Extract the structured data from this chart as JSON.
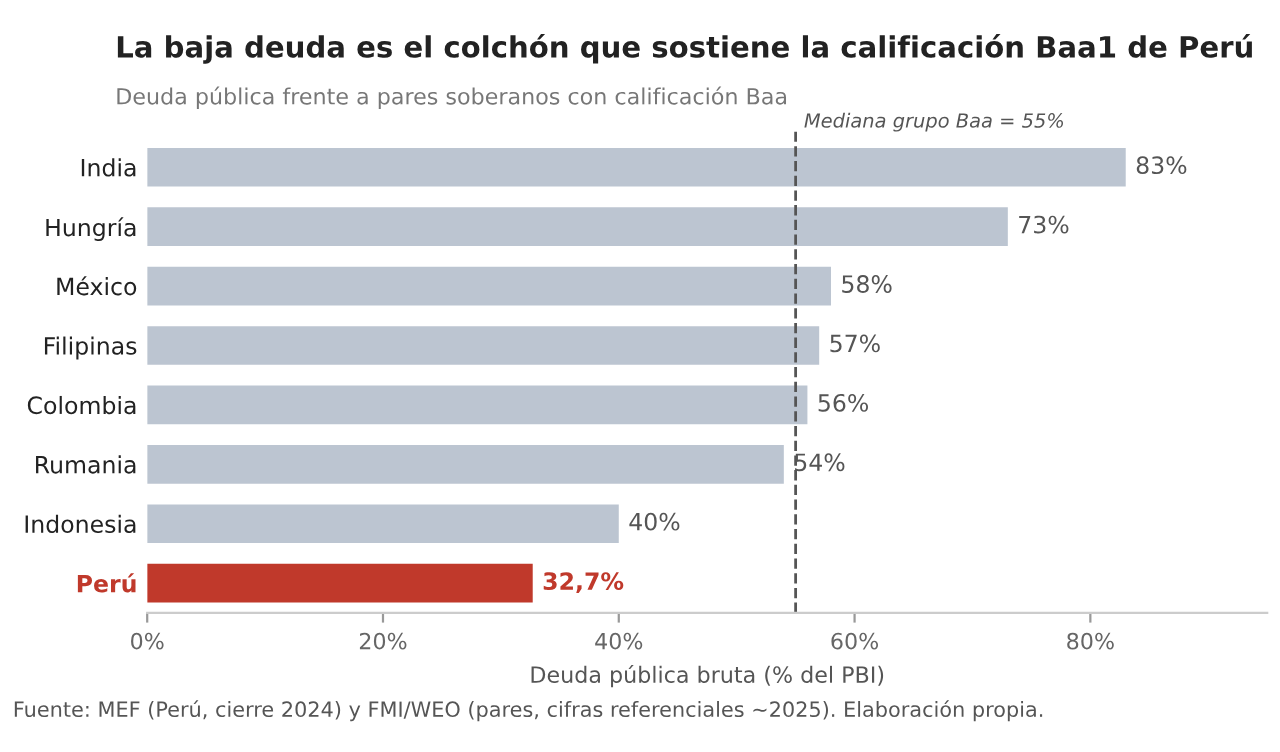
{
  "chart_data": {
    "type": "bar",
    "orientation": "horizontal",
    "title": "La baja deuda es el colchón que sostiene la calificación Baa1 de Perú",
    "subtitle": "Deuda pública frente a pares soberanos con calificación Baa",
    "xlabel": "Deuda pública bruta (% del PBI)",
    "categories": [
      "India",
      "Hungría",
      "México",
      "Filipinas",
      "Colombia",
      "Rumania",
      "Indonesia",
      "Perú"
    ],
    "values": [
      83,
      73,
      58,
      57,
      56,
      54,
      40,
      32.7
    ],
    "value_labels": [
      "83%",
      "73%",
      "58%",
      "57%",
      "56%",
      "54%",
      "40%",
      "32,7%"
    ],
    "color": "#bcc5d1",
    "colors": [
      "#bcc5d1",
      "#bcc5d1",
      "#bcc5d1",
      "#bcc5d1",
      "#bcc5d1",
      "#bcc5d1",
      "#bcc5d1",
      "#c0392b"
    ],
    "xlim": [
      0,
      95
    ],
    "xticks": [
      {
        "value": 0,
        "label": "0%"
      },
      {
        "value": 20,
        "label": "20%"
      },
      {
        "value": 40,
        "label": "40%"
      },
      {
        "value": 60,
        "label": "60%"
      },
      {
        "value": 80,
        "label": "80%"
      }
    ],
    "ref_lines": [
      {
        "axis": "x",
        "value": 55,
        "label": "Mediana grupo Baa = 55%",
        "color": "#555555",
        "line_style": "dashed"
      }
    ],
    "grid": false,
    "legend": false,
    "annotations": [
      "Fuente: MEF (Perú, cierre 2024) y FMI/WEO (pares, cifras referenciales ~2025). Elaboración propia."
    ]
  }
}
